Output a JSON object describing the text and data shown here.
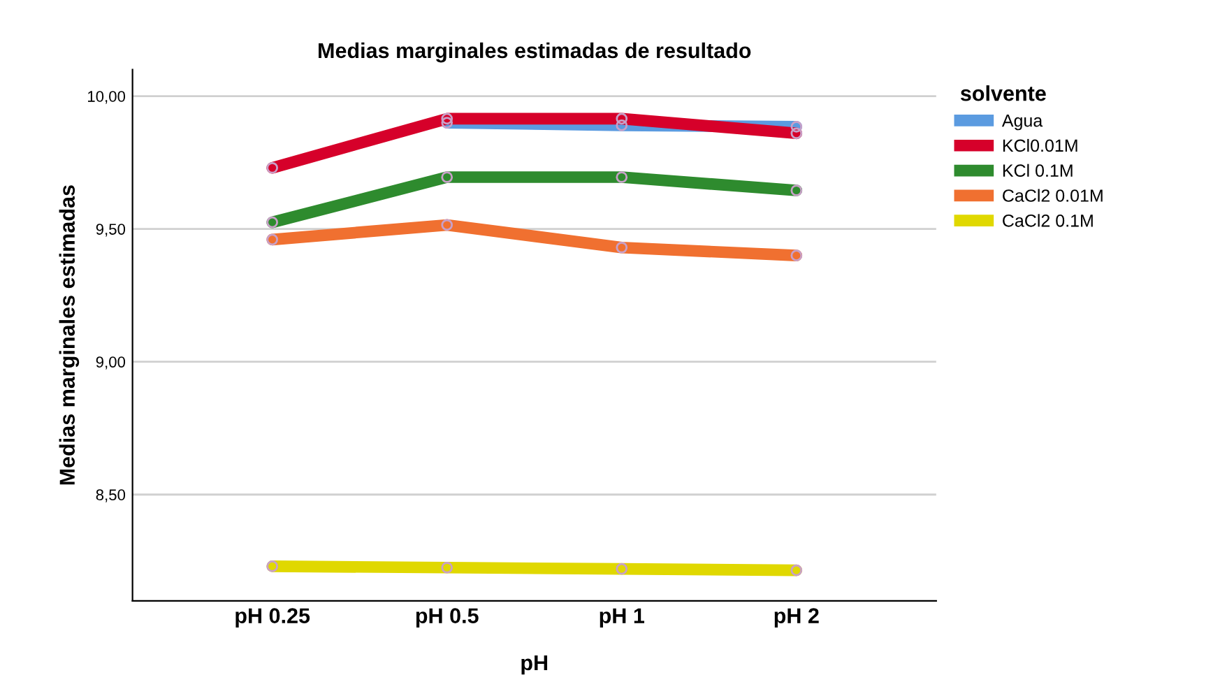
{
  "chart_data": {
    "type": "line",
    "title": "Medias marginales estimadas de resultado",
    "xlabel": "pH",
    "ylabel": "Medias marginales estimadas",
    "legend_title": "solvente",
    "categories": [
      "pH 0.25",
      "pH 0.5",
      "pH 1",
      "pH 2"
    ],
    "series": [
      {
        "name": "Agua",
        "color": "#5b9be0",
        "values": [
          null,
          9.9,
          9.89,
          9.885
        ]
      },
      {
        "name": "KCl0.01M",
        "color": "#d6002a",
        "values": [
          9.73,
          9.915,
          9.915,
          9.86
        ]
      },
      {
        "name": "KCl 0.1M",
        "color": "#2e8b2e",
        "values": [
          9.525,
          9.695,
          9.695,
          9.645
        ]
      },
      {
        "name": "CaCl2 0.01M",
        "color": "#f07030",
        "values": [
          9.46,
          9.515,
          9.43,
          9.4
        ]
      },
      {
        "name": "CaCl2 0.1M",
        "color": "#e0d800",
        "values": [
          8.23,
          8.225,
          8.22,
          8.215
        ]
      }
    ],
    "ylim": [
      8.1,
      10.1
    ],
    "yticks": [
      {
        "value": 8.5,
        "label": "8,50"
      },
      {
        "value": 9.0,
        "label": "9,00"
      },
      {
        "value": 9.5,
        "label": "9,50"
      },
      {
        "value": 10.0,
        "label": "10,00"
      }
    ],
    "grid": "y",
    "legend": "top right",
    "marker": "circle",
    "line_style": "solid"
  }
}
